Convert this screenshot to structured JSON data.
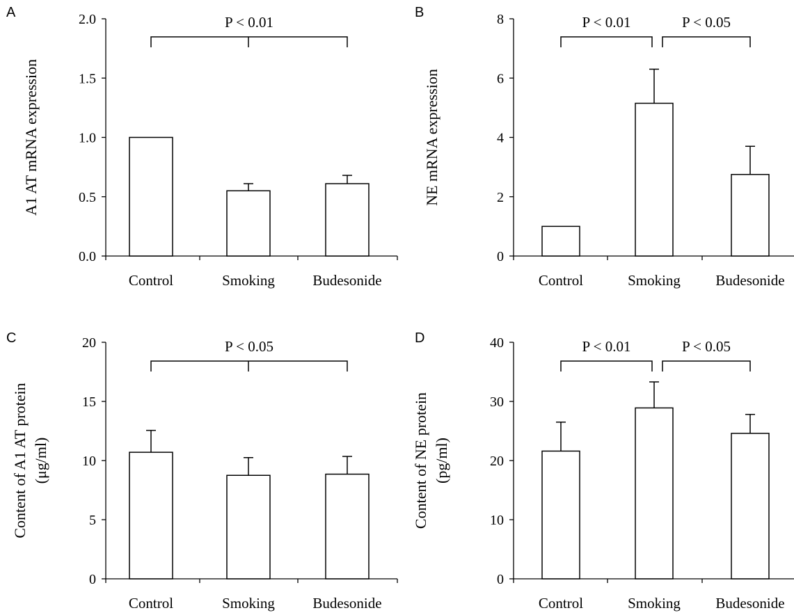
{
  "chart_data": [
    {
      "panel": "A",
      "type": "bar",
      "categories": [
        "Control",
        "Smoking",
        "Budesonide"
      ],
      "values": [
        1.0,
        0.55,
        0.61
      ],
      "errors": [
        0,
        0.06,
        0.07
      ],
      "ylabel": "A1 AT mRNA expression",
      "ylim": [
        0,
        2.0
      ],
      "yticks": [
        "0.0",
        "0.5",
        "1.0",
        "1.5",
        "2.0"
      ],
      "grid": false,
      "significance": [
        {
          "from": 0,
          "to": 2,
          "text": "P < 0.01"
        }
      ]
    },
    {
      "panel": "B",
      "type": "bar",
      "categories": [
        "Control",
        "Smoking",
        "Budesonide"
      ],
      "values": [
        1.0,
        5.15,
        2.75
      ],
      "errors": [
        0,
        1.15,
        0.95
      ],
      "ylabel": "NE mRNA expression",
      "ylim": [
        0,
        8
      ],
      "yticks": [
        "0",
        "2",
        "4",
        "6",
        "8"
      ],
      "grid": false,
      "significance": [
        {
          "from": 0,
          "to": 1,
          "text": "P < 0.01"
        },
        {
          "from": 1,
          "to": 2,
          "text": "P < 0.05"
        }
      ]
    },
    {
      "panel": "C",
      "type": "bar",
      "categories": [
        "Control",
        "Smoking",
        "Budesonide"
      ],
      "values": [
        10.7,
        8.75,
        8.85
      ],
      "errors": [
        1.85,
        1.5,
        1.5
      ],
      "ylabel": "Content of A1 AT protein",
      "ylabel2": "(μg/ml)",
      "ylim": [
        0,
        20
      ],
      "yticks": [
        "0",
        "5",
        "10",
        "15",
        "20"
      ],
      "grid": false,
      "significance": [
        {
          "from": 0,
          "to": 2,
          "text": "P < 0.05"
        }
      ]
    },
    {
      "panel": "D",
      "type": "bar",
      "categories": [
        "Control",
        "Smoking",
        "Budesonide"
      ],
      "values": [
        21.6,
        28.9,
        24.6
      ],
      "errors": [
        4.9,
        4.4,
        3.2
      ],
      "ylabel": "Content of NE protein",
      "ylabel2": "(pg/ml)",
      "ylim": [
        0,
        40
      ],
      "yticks": [
        "0",
        "10",
        "20",
        "30",
        "40"
      ],
      "grid": false,
      "significance": [
        {
          "from": 0,
          "to": 1,
          "text": "P < 0.01"
        },
        {
          "from": 1,
          "to": 2,
          "text": "P < 0.05"
        }
      ]
    }
  ]
}
